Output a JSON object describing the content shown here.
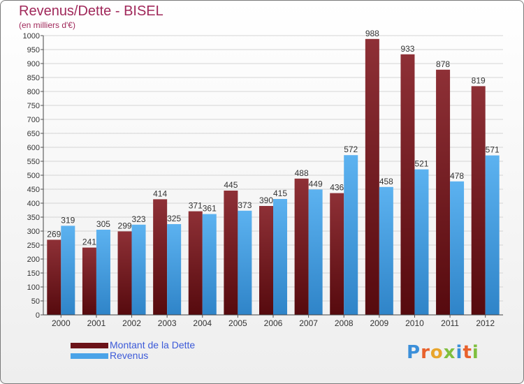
{
  "title": "Revenus/Dette - BISEL",
  "subtitle": "(en milliers d'€)",
  "chart_data": {
    "type": "bar",
    "categories": [
      "2000",
      "2001",
      "2002",
      "2003",
      "2004",
      "2005",
      "2006",
      "2007",
      "2008",
      "2009",
      "2010",
      "2011",
      "2012"
    ],
    "series": [
      {
        "name": "Montant de la Dette",
        "values": [
          269,
          241,
          299,
          414,
          371,
          445,
          390,
          488,
          436,
          988,
          933,
          878,
          819
        ],
        "color": "#7a1f24"
      },
      {
        "name": "Revenus",
        "values": [
          319,
          305,
          323,
          325,
          361,
          373,
          415,
          449,
          572,
          458,
          521,
          478,
          571
        ],
        "color": "#4aa3e8"
      }
    ],
    "ylim": [
      0,
      1000
    ],
    "ytick_step": 50,
    "grid": true
  },
  "logo": {
    "text": "Proxiti"
  }
}
